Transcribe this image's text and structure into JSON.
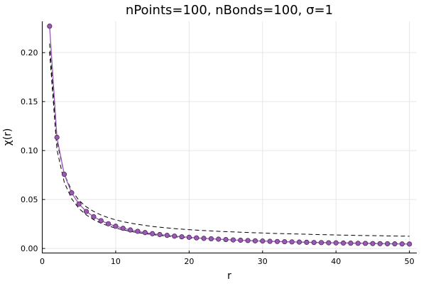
{
  "chart_data": {
    "type": "scatter",
    "title": "nPoints=100, nBonds=100, σ=1",
    "xlabel": "r",
    "ylabel": "χ(r)",
    "xlim": [
      0,
      51
    ],
    "ylim": [
      -0.005,
      0.232
    ],
    "xticks": [
      0,
      10,
      20,
      30,
      40,
      50
    ],
    "xtick_labels": [
      "0",
      "10",
      "20",
      "30",
      "40",
      "50"
    ],
    "yticks": [
      0.0,
      0.05,
      0.1,
      0.15,
      0.2
    ],
    "ytick_labels": [
      "0.00",
      "0.05",
      "0.10",
      "0.15",
      "0.20"
    ],
    "grid": true,
    "legend": "none",
    "colors": {
      "series": "#9b59b6",
      "marker_edge": "#4a2a57",
      "bounds": "#000000"
    },
    "series": [
      {
        "kind": "line+markers",
        "x": [
          1,
          2,
          3,
          4,
          5,
          6,
          7,
          8,
          9,
          10,
          11,
          12,
          13,
          14,
          15,
          16,
          17,
          18,
          19,
          20,
          21,
          22,
          23,
          24,
          25,
          26,
          27,
          28,
          29,
          30,
          31,
          32,
          33,
          34,
          35,
          36,
          37,
          38,
          39,
          40,
          41,
          42,
          43,
          44,
          45,
          46,
          47,
          48,
          49,
          50
        ],
        "y": [
          0.227,
          0.1135,
          0.0757,
          0.0568,
          0.0454,
          0.0378,
          0.0324,
          0.0284,
          0.0252,
          0.0227,
          0.0206,
          0.0189,
          0.0175,
          0.0162,
          0.0151,
          0.0142,
          0.0134,
          0.0126,
          0.0119,
          0.0114,
          0.0108,
          0.0103,
          0.0099,
          0.0095,
          0.0091,
          0.0087,
          0.0084,
          0.0081,
          0.0078,
          0.0076,
          0.0073,
          0.0071,
          0.0069,
          0.0067,
          0.0065,
          0.0063,
          0.0061,
          0.006,
          0.0058,
          0.0057,
          0.0055,
          0.0054,
          0.0053,
          0.0052,
          0.005,
          0.0049,
          0.0048,
          0.0047,
          0.0046,
          0.0045
        ]
      },
      {
        "kind": "dashed-upper",
        "x": [
          1,
          2,
          3,
          4,
          5,
          6,
          7,
          8,
          9,
          10,
          11,
          12,
          13,
          14,
          15,
          16,
          17,
          18,
          19,
          20,
          21,
          22,
          23,
          24,
          25,
          26,
          27,
          28,
          29,
          30,
          31,
          32,
          33,
          34,
          35,
          36,
          37,
          38,
          39,
          40,
          41,
          42,
          43,
          44,
          45,
          46,
          47,
          48,
          49,
          50
        ],
        "y": [
          0.2092,
          0.1092,
          0.0759,
          0.0592,
          0.0492,
          0.0425,
          0.0378,
          0.0342,
          0.0314,
          0.0292,
          0.0274,
          0.0259,
          0.0246,
          0.0235,
          0.0225,
          0.0217,
          0.021,
          0.0203,
          0.0197,
          0.0192,
          0.0187,
          0.0183,
          0.0179,
          0.0175,
          0.0172,
          0.0169,
          0.0166,
          0.0163,
          0.016,
          0.0158,
          0.0155,
          0.0153,
          0.0151,
          0.0149,
          0.0147,
          0.0145,
          0.0143,
          0.0141,
          0.014,
          0.0138,
          0.0136,
          0.0135,
          0.0133,
          0.0132,
          0.0131,
          0.013,
          0.0128,
          0.0127,
          0.0126,
          0.0125
        ]
      },
      {
        "kind": "dashed-lower",
        "x": [
          1,
          2,
          3,
          4,
          5,
          6,
          7,
          8,
          9,
          10,
          11,
          12,
          13,
          14,
          15,
          16,
          17,
          18,
          19,
          20,
          21,
          22,
          23,
          24,
          25,
          26,
          27,
          28,
          29,
          30,
          31,
          32,
          33,
          34,
          35,
          36,
          37,
          38,
          39,
          40,
          41,
          42,
          43,
          44,
          45,
          46,
          47,
          48,
          49,
          50
        ],
        "y": [
          0.2008,
          0.1008,
          0.0675,
          0.0508,
          0.0408,
          0.0342,
          0.0294,
          0.0258,
          0.023,
          0.0208,
          0.019,
          0.0175,
          0.0162,
          0.0151,
          0.0142,
          0.0133,
          0.0126,
          0.0119,
          0.0114,
          0.0108,
          0.0103,
          0.0099,
          0.0095,
          0.0091,
          0.0088,
          0.0085,
          0.0082,
          0.0079,
          0.0077,
          0.0075,
          0.0073,
          0.0071,
          0.0069,
          0.0067,
          0.0065,
          0.0064,
          0.0062,
          0.0061,
          0.0059,
          0.0058,
          0.0057,
          0.0055,
          0.0054,
          0.0053,
          0.0052,
          0.0051,
          0.005,
          0.0049,
          0.0048,
          0.0047
        ]
      }
    ]
  }
}
